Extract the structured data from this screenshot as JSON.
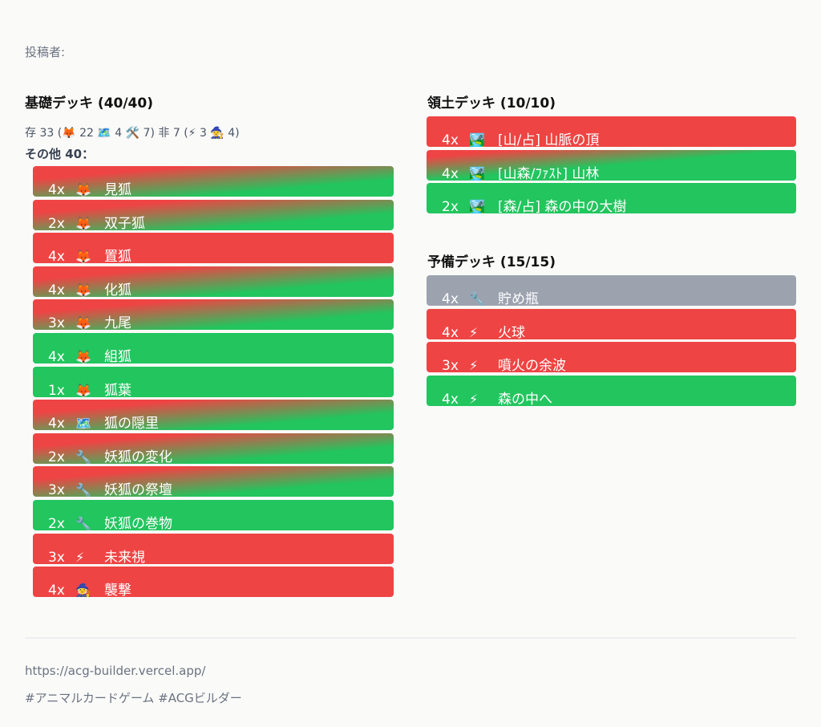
{
  "poster_label": "投稿者:",
  "main_deck": {
    "title": "基礎デッキ (40/40)",
    "summary": {
      "creature_label": "存",
      "creature_count": "33",
      "creature_breakdown": [
        {
          "icon": "🦊",
          "icon_name": "fox-icon",
          "count": "22"
        },
        {
          "icon": "🗺️",
          "icon_name": "map-icon",
          "count": "4"
        },
        {
          "icon": "🛠️",
          "icon_name": "tools-icon",
          "count": "7"
        }
      ],
      "noncreature_label": "非",
      "noncreature_count": "7",
      "noncreature_breakdown": [
        {
          "icon": "⚡",
          "icon_name": "lightning-icon",
          "count": "3"
        },
        {
          "icon": "🧙",
          "icon_name": "mage-icon",
          "count": "4"
        }
      ]
    },
    "other_label": "その他 40：",
    "cards": [
      {
        "qty": "4x",
        "icon": "🦊",
        "icon_name": "fox-icon",
        "name": "見狐",
        "bg": "grad"
      },
      {
        "qty": "2x",
        "icon": "🦊",
        "icon_name": "fox-icon",
        "name": "双子狐",
        "bg": "grad"
      },
      {
        "qty": "4x",
        "icon": "🦊",
        "icon_name": "fox-icon",
        "name": "置狐",
        "bg": "red"
      },
      {
        "qty": "4x",
        "icon": "🦊",
        "icon_name": "fox-icon",
        "name": "化狐",
        "bg": "grad"
      },
      {
        "qty": "3x",
        "icon": "🦊",
        "icon_name": "fox-icon",
        "name": "九尾",
        "bg": "grad"
      },
      {
        "qty": "4x",
        "icon": "🦊",
        "icon_name": "fox-icon",
        "name": "組狐",
        "bg": "green"
      },
      {
        "qty": "1x",
        "icon": "🦊",
        "icon_name": "fox-icon",
        "name": "狐葉",
        "bg": "green"
      },
      {
        "qty": "4x",
        "icon": "🗺️",
        "icon_name": "map-icon",
        "name": "狐の隠里",
        "bg": "grad"
      },
      {
        "qty": "2x",
        "icon": "🔧",
        "icon_name": "wrench-icon",
        "name": "妖狐の変化",
        "bg": "grad"
      },
      {
        "qty": "3x",
        "icon": "🔧",
        "icon_name": "wrench-icon",
        "name": "妖狐の祭壇",
        "bg": "grad"
      },
      {
        "qty": "2x",
        "icon": "🔧",
        "icon_name": "wrench-icon",
        "name": "妖狐の巻物",
        "bg": "green"
      },
      {
        "qty": "3x",
        "icon": "⚡",
        "icon_name": "lightning-icon",
        "name": "未来視",
        "bg": "red"
      },
      {
        "qty": "4x",
        "icon": "🧙",
        "icon_name": "mage-icon",
        "name": "襲撃",
        "bg": "red"
      }
    ]
  },
  "territory_deck": {
    "title": "領土デッキ (10/10)",
    "cards": [
      {
        "qty": "4x",
        "icon": "🏞️",
        "icon_name": "landscape-icon",
        "name": "[山/占] 山脈の頂",
        "bg": "red"
      },
      {
        "qty": "4x",
        "icon": "🏞️",
        "icon_name": "landscape-icon",
        "name": "[山森/ﾌｧｽﾄ] 山林",
        "bg": "grad2"
      },
      {
        "qty": "2x",
        "icon": "🏞️",
        "icon_name": "landscape-icon",
        "name": "[森/占] 森の中の大樹",
        "bg": "green"
      }
    ]
  },
  "reserve_deck": {
    "title": "予備デッキ (15/15)",
    "cards": [
      {
        "qty": "4x",
        "icon": "🔧",
        "icon_name": "wrench-icon",
        "name": "貯め瓶",
        "bg": "gray"
      },
      {
        "qty": "4x",
        "icon": "⚡",
        "icon_name": "lightning-icon",
        "name": "火球",
        "bg": "red"
      },
      {
        "qty": "3x",
        "icon": "⚡",
        "icon_name": "lightning-icon",
        "name": "噴火の余波",
        "bg": "red"
      },
      {
        "qty": "4x",
        "icon": "⚡",
        "icon_name": "lightning-icon",
        "name": "森の中へ",
        "bg": "green"
      }
    ]
  },
  "footer": {
    "url": "https://acg-builder.vercel.app/",
    "hashtags": "#アニマルカードゲーム #ACGビルダー"
  },
  "colors": {
    "red": "#ef4444",
    "green": "#22c55e",
    "gray": "#9ca3af",
    "background": "#fafaf9"
  }
}
